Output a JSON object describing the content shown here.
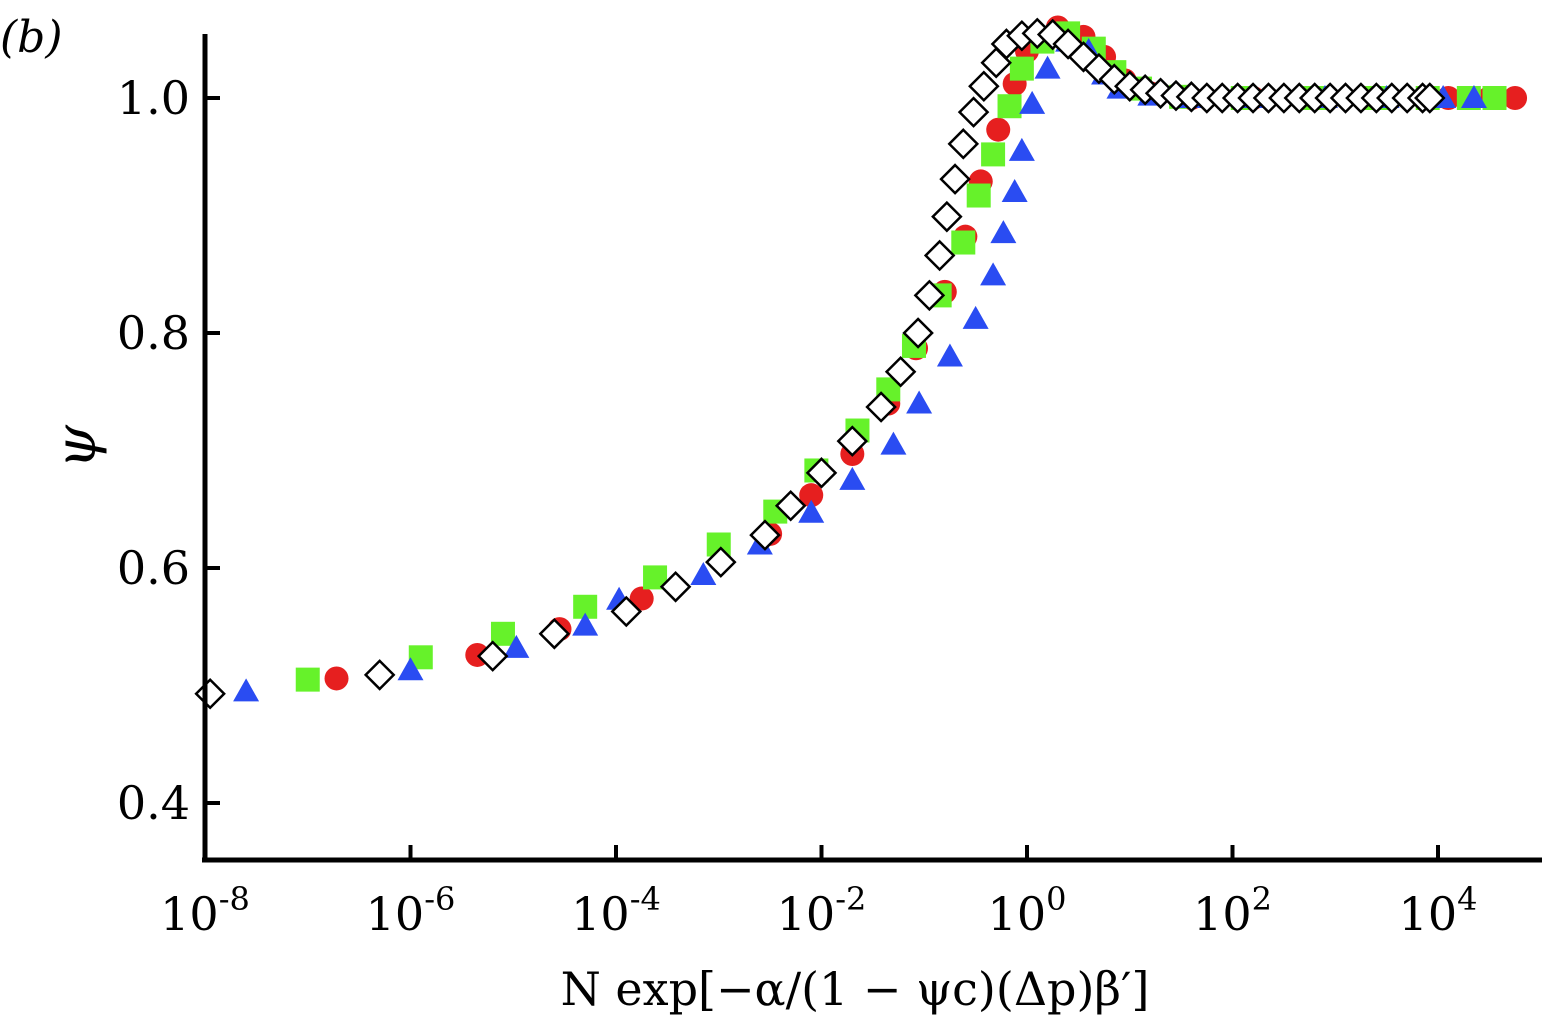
{
  "chart_data": {
    "type": "scatter",
    "panel_label": "(b)",
    "title": "",
    "xlabel": "N exp[−α/(1 − ψc)(Δp)β′]",
    "ylabel": "ψ",
    "xscale": "log",
    "xlim": [
      1e-08,
      100000.0
    ],
    "ylim": [
      0.35,
      1.05
    ],
    "x_ticks": [
      {
        "mantissa": "10",
        "exponent": "-8",
        "value": -8
      },
      {
        "mantissa": "10",
        "exponent": "-6",
        "value": -6
      },
      {
        "mantissa": "10",
        "exponent": "-4",
        "value": -4
      },
      {
        "mantissa": "10",
        "exponent": "-2",
        "value": -2
      },
      {
        "mantissa": "10",
        "exponent": "0",
        "value": 0
      },
      {
        "mantissa": "10",
        "exponent": "2",
        "value": 2
      },
      {
        "mantissa": "10",
        "exponent": "4",
        "value": 4
      }
    ],
    "y_ticks": [
      "0.4",
      "0.6",
      "0.8",
      "1.0"
    ],
    "grid": false,
    "legend": "none",
    "series": [
      {
        "name": "circle",
        "marker": "circle",
        "color": "#e61f1f",
        "points": [
          [
            -6.72,
            0.506
          ],
          [
            -5.35,
            0.526
          ],
          [
            -4.55,
            0.548
          ],
          [
            -3.75,
            0.574
          ],
          [
            -2.5,
            0.629
          ],
          [
            -2.1,
            0.662
          ],
          [
            -1.7,
            0.697
          ],
          [
            -1.35,
            0.74
          ],
          [
            -1.08,
            0.787
          ],
          [
            -0.8,
            0.835
          ],
          [
            -0.6,
            0.882
          ],
          [
            -0.45,
            0.929
          ],
          [
            -0.28,
            0.973
          ],
          [
            -0.12,
            1.012
          ],
          [
            0.0,
            1.04
          ],
          [
            0.1,
            1.052
          ],
          [
            0.3,
            1.06
          ],
          [
            0.55,
            1.052
          ],
          [
            0.75,
            1.035
          ],
          [
            0.95,
            1.015
          ],
          [
            1.2,
            1.004
          ],
          [
            1.6,
            1.0
          ],
          [
            2.2,
            1.0
          ],
          [
            2.9,
            1.0
          ],
          [
            3.5,
            1.0
          ],
          [
            4.1,
            1.0
          ],
          [
            4.5,
            1.0
          ],
          [
            4.75,
            1.0
          ]
        ]
      },
      {
        "name": "square",
        "marker": "square",
        "color": "#66f22a",
        "points": [
          [
            -7.0,
            0.505
          ],
          [
            -5.9,
            0.524
          ],
          [
            -5.1,
            0.544
          ],
          [
            -4.3,
            0.567
          ],
          [
            -3.62,
            0.592
          ],
          [
            -3.0,
            0.62
          ],
          [
            -2.45,
            0.648
          ],
          [
            -2.05,
            0.683
          ],
          [
            -1.65,
            0.717
          ],
          [
            -1.35,
            0.752
          ],
          [
            -1.1,
            0.789
          ],
          [
            -0.85,
            0.832
          ],
          [
            -0.62,
            0.877
          ],
          [
            -0.47,
            0.917
          ],
          [
            -0.33,
            0.952
          ],
          [
            -0.17,
            0.993
          ],
          [
            -0.05,
            1.025
          ],
          [
            0.15,
            1.048
          ],
          [
            0.4,
            1.055
          ],
          [
            0.65,
            1.042
          ],
          [
            0.85,
            1.022
          ],
          [
            1.1,
            1.008
          ],
          [
            1.5,
            1.001
          ],
          [
            2.1,
            1.0
          ],
          [
            2.8,
            1.0
          ],
          [
            3.4,
            1.0
          ],
          [
            3.9,
            1.0
          ],
          [
            4.3,
            1.0
          ],
          [
            4.55,
            1.0
          ]
        ]
      },
      {
        "name": "triangle",
        "marker": "triangle",
        "color": "#2a4cf2",
        "points": [
          [
            -7.6,
            0.495
          ],
          [
            -6.0,
            0.513
          ],
          [
            -4.97,
            0.532
          ],
          [
            -4.3,
            0.551
          ],
          [
            -3.97,
            0.573
          ],
          [
            -3.15,
            0.594
          ],
          [
            -2.6,
            0.62
          ],
          [
            -2.1,
            0.647
          ],
          [
            -1.7,
            0.675
          ],
          [
            -1.3,
            0.705
          ],
          [
            -1.05,
            0.74
          ],
          [
            -0.75,
            0.78
          ],
          [
            -0.5,
            0.812
          ],
          [
            -0.33,
            0.849
          ],
          [
            -0.23,
            0.885
          ],
          [
            -0.12,
            0.92
          ],
          [
            -0.05,
            0.955
          ],
          [
            0.05,
            0.995
          ],
          [
            0.2,
            1.025
          ],
          [
            0.4,
            1.048
          ],
          [
            0.6,
            1.04
          ],
          [
            0.75,
            1.02
          ],
          [
            0.9,
            1.008
          ],
          [
            1.2,
            1.002
          ],
          [
            1.6,
            1.0
          ],
          [
            2.2,
            1.0
          ],
          [
            2.9,
            1.0
          ],
          [
            3.5,
            1.0
          ],
          [
            4.05,
            1.0
          ],
          [
            4.35,
            1.0
          ]
        ]
      },
      {
        "name": "diamond",
        "marker": "diamond",
        "color": "#ffffff",
        "points": [
          [
            -7.95,
            0.493
          ],
          [
            -6.3,
            0.509
          ],
          [
            -5.2,
            0.525
          ],
          [
            -4.6,
            0.544
          ],
          [
            -3.9,
            0.563
          ],
          [
            -3.42,
            0.584
          ],
          [
            -2.98,
            0.605
          ],
          [
            -2.55,
            0.628
          ],
          [
            -2.3,
            0.653
          ],
          [
            -2.0,
            0.681
          ],
          [
            -1.7,
            0.708
          ],
          [
            -1.42,
            0.737
          ],
          [
            -1.23,
            0.767
          ],
          [
            -1.06,
            0.8
          ],
          [
            -0.95,
            0.832
          ],
          [
            -0.85,
            0.866
          ],
          [
            -0.78,
            0.899
          ],
          [
            -0.7,
            0.931
          ],
          [
            -0.62,
            0.961
          ],
          [
            -0.52,
            0.988
          ],
          [
            -0.42,
            1.01
          ],
          [
            -0.3,
            1.03
          ],
          [
            -0.2,
            1.046
          ],
          [
            -0.05,
            1.053
          ],
          [
            0.1,
            1.055
          ],
          [
            0.25,
            1.054
          ],
          [
            0.4,
            1.046
          ],
          [
            0.55,
            1.035
          ],
          [
            0.7,
            1.025
          ],
          [
            0.85,
            1.016
          ],
          [
            1.0,
            1.01
          ],
          [
            1.15,
            1.007
          ],
          [
            1.3,
            1.004
          ],
          [
            1.45,
            1.002
          ],
          [
            1.6,
            1.001
          ],
          [
            1.75,
            1.0
          ],
          [
            1.9,
            1.0
          ],
          [
            2.05,
            1.0
          ],
          [
            2.2,
            1.0
          ],
          [
            2.35,
            1.0
          ],
          [
            2.5,
            1.0
          ],
          [
            2.65,
            1.0
          ],
          [
            2.8,
            1.0
          ],
          [
            2.95,
            1.0
          ],
          [
            3.1,
            1.0
          ],
          [
            3.25,
            1.0
          ],
          [
            3.4,
            1.0
          ],
          [
            3.55,
            1.0
          ],
          [
            3.7,
            1.0
          ],
          [
            3.85,
            1.0
          ],
          [
            3.92,
            1.0
          ]
        ]
      }
    ]
  }
}
